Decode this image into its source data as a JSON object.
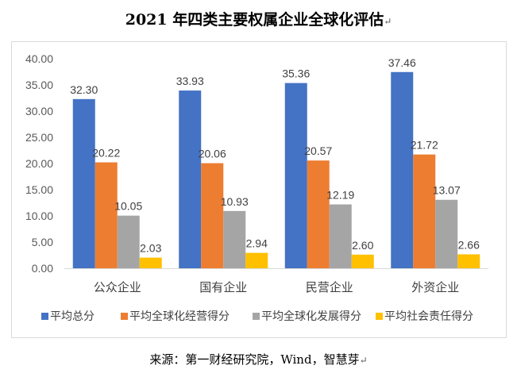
{
  "title": "2021 年四类主要权属企业全球化评估",
  "title_mark": "↵",
  "source": "来源：第一财经研究院，Wind，智慧芽",
  "source_mark": "↵",
  "chart_data": {
    "type": "bar",
    "title": "2021 年四类主要权属企业全球化评估",
    "xlabel": "",
    "ylabel": "",
    "ylim": [
      0,
      40
    ],
    "yticks": [
      "0.00",
      "5.00",
      "10.00",
      "15.00",
      "20.00",
      "25.00",
      "30.00",
      "35.00",
      "40.00"
    ],
    "grid": false,
    "legend_position": "bottom",
    "categories": [
      "公众企业",
      "国有企业",
      "民营企业",
      "外资企业"
    ],
    "series": [
      {
        "name": "平均总分",
        "color": "#4472C4",
        "values": [
          32.3,
          33.93,
          35.36,
          37.46
        ],
        "labels": [
          "32.30",
          "33.93",
          "35.36",
          "37.46"
        ]
      },
      {
        "name": "平均全球化经营得分",
        "color": "#ED7D31",
        "values": [
          20.22,
          20.06,
          20.57,
          21.72
        ],
        "labels": [
          "20.22",
          "20.06",
          "20.57",
          "21.72"
        ]
      },
      {
        "name": "平均全球化发展得分",
        "color": "#A5A5A5",
        "values": [
          10.05,
          10.93,
          12.19,
          13.07
        ],
        "labels": [
          "10.05",
          "10.93",
          "12.19",
          "13.07"
        ]
      },
      {
        "name": "平均社会责任得分",
        "color": "#FFC000",
        "values": [
          2.03,
          2.94,
          2.6,
          2.66
        ],
        "labels": [
          "2.03",
          "2.94",
          "2.60",
          "2.66"
        ]
      }
    ]
  }
}
